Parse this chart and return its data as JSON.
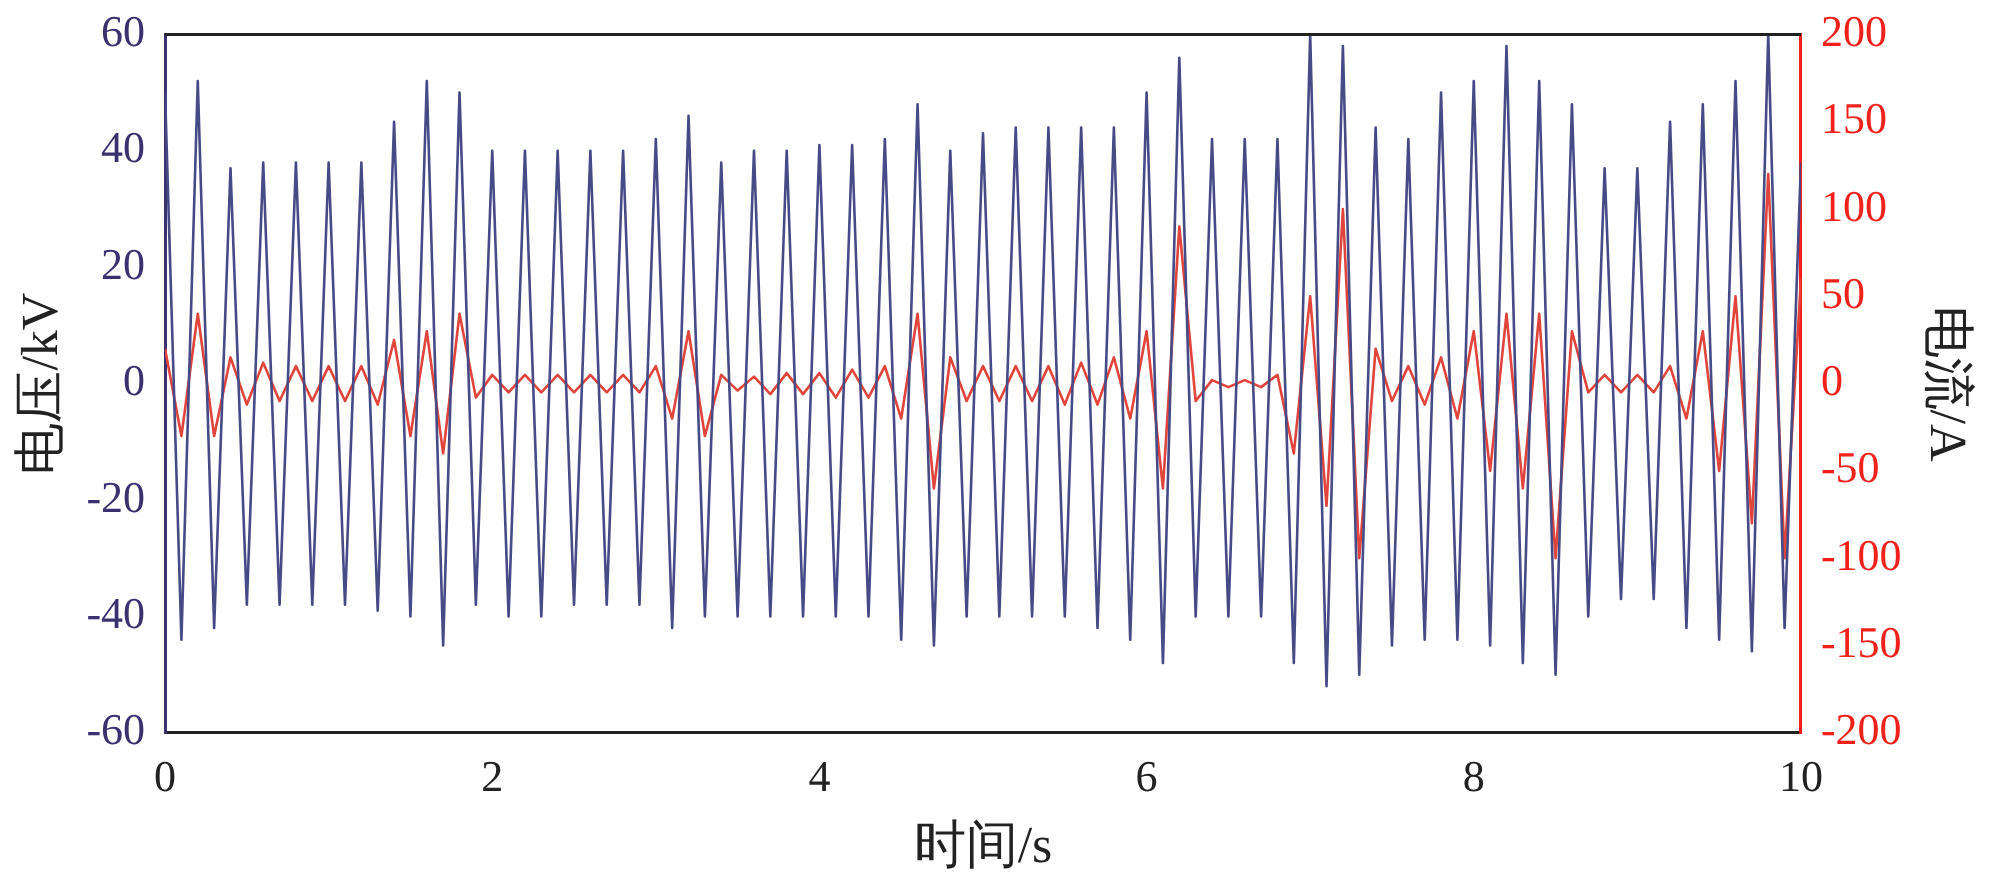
{
  "chart_data": {
    "type": "line",
    "xlabel": "时间/s",
    "ylabel": "电压/kV",
    "y2label": "电流/A",
    "x": [
      0,
      0.1,
      0.2,
      0.3,
      0.4,
      0.5,
      0.6,
      0.7,
      0.8,
      0.9,
      1,
      1.1,
      1.2,
      1.3,
      1.4,
      1.5,
      1.6,
      1.7,
      1.8,
      1.9,
      2,
      2.1,
      2.2,
      2.3,
      2.4,
      2.5,
      2.6,
      2.7,
      2.8,
      2.9,
      3,
      3.1,
      3.2,
      3.3,
      3.4,
      3.5,
      3.6,
      3.7,
      3.8,
      3.9,
      4,
      4.1,
      4.2,
      4.3,
      4.4,
      4.5,
      4.6,
      4.7,
      4.8,
      4.9,
      5,
      5.1,
      5.2,
      5.3,
      5.4,
      5.5,
      5.6,
      5.7,
      5.8,
      5.9,
      6,
      6.1,
      6.2,
      6.3,
      6.4,
      6.5,
      6.6,
      6.7,
      6.8,
      6.9,
      7,
      7.1,
      7.2,
      7.3,
      7.4,
      7.5,
      7.6,
      7.7,
      7.8,
      7.9,
      8,
      8.1,
      8.2,
      8.3,
      8.4,
      8.5,
      8.6,
      8.7,
      8.8,
      8.9,
      9,
      9.1,
      9.2,
      9.3,
      9.4,
      9.5,
      9.6,
      9.7,
      9.8,
      9.9,
      10
    ],
    "series": [
      {
        "color": "#464a86",
        "axis": "y",
        "values": [
          50,
          -44,
          52,
          -42,
          37,
          -38,
          38,
          -38,
          38,
          -38,
          38,
          -38,
          38,
          -39,
          45,
          -40,
          52,
          -45,
          50,
          -38,
          40,
          -40,
          40,
          -40,
          40,
          -38,
          40,
          -38,
          40,
          -38,
          42,
          -42,
          46,
          -40,
          38,
          -40,
          40,
          -40,
          40,
          -40,
          41,
          -40,
          41,
          -40,
          42,
          -44,
          48,
          -45,
          40,
          -40,
          43,
          -40,
          44,
          -40,
          44,
          -40,
          44,
          -42,
          44,
          -44,
          50,
          -48,
          56,
          -40,
          42,
          -40,
          42,
          -40,
          42,
          -48,
          60,
          -52,
          58,
          -50,
          44,
          -45,
          42,
          -44,
          50,
          -44,
          52,
          -45,
          58,
          -48,
          52,
          -50,
          48,
          -40,
          37,
          -37,
          37,
          -37,
          45,
          -42,
          48,
          -44,
          52,
          -46,
          60,
          -42,
          38
        ]
      },
      {
        "color": "#e0443b",
        "axis": "y2",
        "values": [
          20,
          -30,
          40,
          -30,
          15,
          -12,
          12,
          -10,
          10,
          -10,
          10,
          -10,
          10,
          -12,
          25,
          -30,
          30,
          -40,
          40,
          -8,
          5,
          -5,
          5,
          -5,
          5,
          -5,
          5,
          -5,
          5,
          -5,
          10,
          -20,
          30,
          -30,
          5,
          -4,
          4,
          -6,
          6,
          -6,
          6,
          -8,
          8,
          -8,
          10,
          -20,
          40,
          -60,
          15,
          -10,
          10,
          -10,
          10,
          -10,
          10,
          -12,
          12,
          -12,
          15,
          -20,
          30,
          -60,
          90,
          -10,
          2,
          -2,
          2,
          -2,
          5,
          -40,
          50,
          -70,
          100,
          -100,
          20,
          -10,
          10,
          -12,
          15,
          -20,
          30,
          -50,
          40,
          -60,
          40,
          -100,
          30,
          -5,
          5,
          -5,
          5,
          -5,
          10,
          -20,
          30,
          -50,
          50,
          -80,
          120,
          -100,
          60
        ]
      }
    ],
    "xlim": [
      0,
      10
    ],
    "xticks": [
      0,
      2,
      4,
      6,
      8,
      10
    ],
    "ylim": [
      -60,
      60
    ],
    "yticks": [
      -60,
      -40,
      -20,
      0,
      20,
      40,
      60
    ],
    "y2lim": [
      -200,
      200
    ],
    "y2ticks": [
      -200,
      -150,
      -100,
      -50,
      0,
      50,
      100,
      150,
      200
    ]
  }
}
